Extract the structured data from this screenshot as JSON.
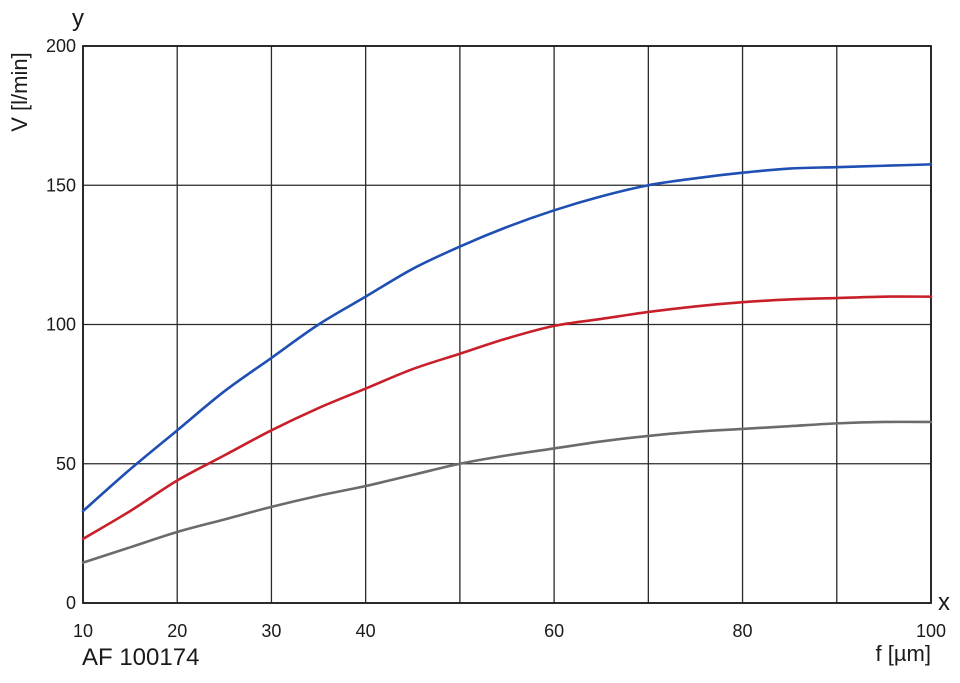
{
  "chart_data": {
    "type": "line",
    "title": "",
    "ylabel": "V [l/min]",
    "xlabel": "f [µm]",
    "x_axis_letter": "x",
    "y_axis_letter": "y",
    "figure_code": "AF 100174",
    "xlim": [
      10,
      100
    ],
    "ylim": [
      0,
      200
    ],
    "x_gridlines": [
      10,
      20,
      30,
      40,
      50,
      60,
      70,
      80,
      90,
      100
    ],
    "x_tick_labels": [
      "10",
      "20",
      "30",
      "40",
      "60",
      "80",
      "100"
    ],
    "x_tick_values": [
      10,
      20,
      30,
      40,
      60,
      80,
      100
    ],
    "y_ticks": [
      0,
      50,
      100,
      150,
      200
    ],
    "y_tick_labels": [
      "0",
      "50",
      "100",
      "150",
      "200"
    ],
    "grid": true,
    "series": [
      {
        "color": "#1f4fb3",
        "x": [
          10,
          15,
          20,
          25,
          30,
          35,
          40,
          45,
          50,
          55,
          60,
          65,
          70,
          75,
          80,
          85,
          90,
          95,
          100
        ],
        "y": [
          33,
          48,
          62,
          76,
          88,
          100,
          110,
          120,
          128,
          135,
          141,
          146,
          150,
          152.5,
          154.5,
          156,
          156.5,
          157,
          157.5
        ]
      },
      {
        "color": "#c8202a",
        "x": [
          10,
          15,
          20,
          25,
          30,
          35,
          40,
          45,
          50,
          55,
          60,
          65,
          70,
          75,
          80,
          85,
          90,
          95,
          100
        ],
        "y": [
          23,
          33,
          44,
          53,
          62,
          70,
          77,
          84,
          89.5,
          95,
          99.5,
          102,
          104.5,
          106.5,
          108,
          109,
          109.5,
          110,
          110
        ]
      },
      {
        "color": "#6b6b6b",
        "x": [
          10,
          15,
          20,
          25,
          30,
          35,
          40,
          45,
          50,
          55,
          60,
          65,
          70,
          75,
          80,
          85,
          90,
          95,
          100
        ],
        "y": [
          14.5,
          20,
          25.5,
          30,
          34.5,
          38.5,
          42,
          46,
          50,
          53,
          55.5,
          58,
          60,
          61.5,
          62.5,
          63.5,
          64.5,
          65,
          65
        ]
      }
    ]
  }
}
